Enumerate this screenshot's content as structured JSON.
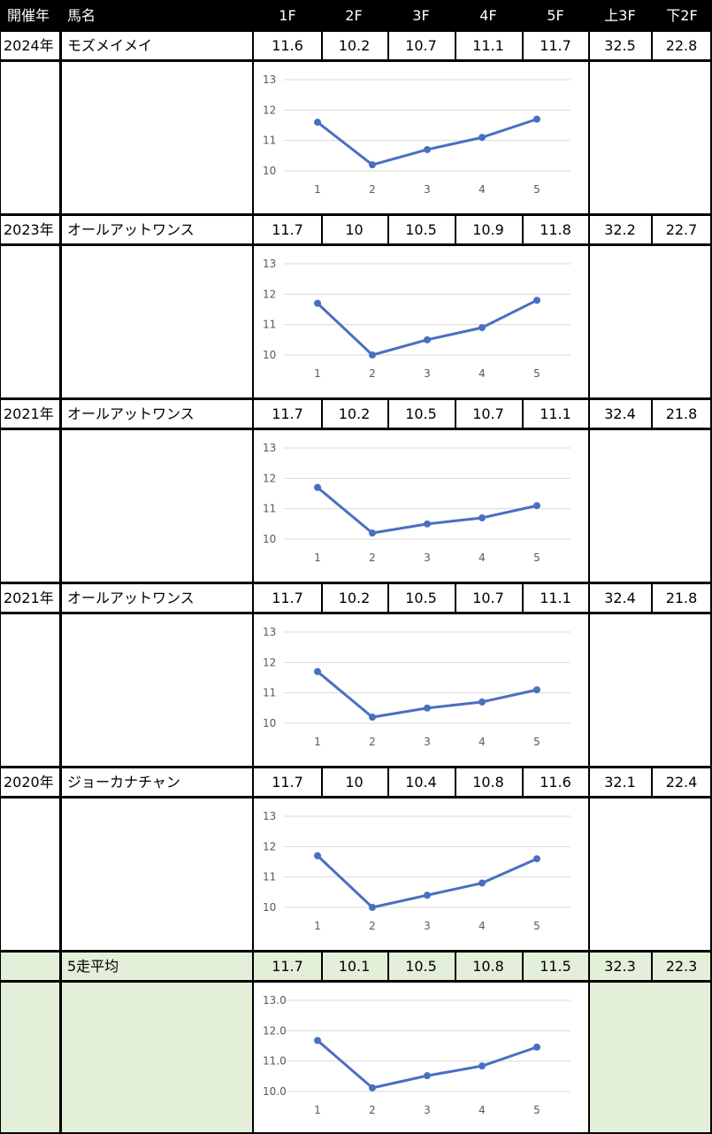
{
  "header": {
    "year": "開催年",
    "horse": "馬名",
    "sections": [
      "1F",
      "2F",
      "3F",
      "4F",
      "5F"
    ],
    "first3f": "上3F",
    "last2f": "下2F"
  },
  "rows": [
    {
      "year": "2024年",
      "horse": "モズメイメイ",
      "values": [
        "11.6",
        "10.2",
        "10.7",
        "11.1",
        "11.7"
      ],
      "first3f": "32.5",
      "last2f": "22.8"
    },
    {
      "year": "2023年",
      "horse": "オールアットワンス",
      "values": [
        "11.7",
        "10",
        "10.5",
        "10.9",
        "11.8"
      ],
      "first3f": "32.2",
      "last2f": "22.7"
    },
    {
      "year": "2021年",
      "horse": "オールアットワンス",
      "values": [
        "11.7",
        "10.2",
        "10.5",
        "10.7",
        "11.1"
      ],
      "first3f": "32.4",
      "last2f": "21.8"
    },
    {
      "year": "2021年",
      "horse": "オールアットワンス",
      "values": [
        "11.7",
        "10.2",
        "10.5",
        "10.7",
        "11.1"
      ],
      "first3f": "32.4",
      "last2f": "21.8"
    },
    {
      "year": "2020年",
      "horse": "ジョーカナチャン",
      "values": [
        "11.7",
        "10",
        "10.4",
        "10.8",
        "11.6"
      ],
      "first3f": "32.1",
      "last2f": "22.4"
    }
  ],
  "average": {
    "year": "",
    "horse": "5走平均",
    "values": [
      "11.7",
      "10.1",
      "10.5",
      "10.8",
      "11.5"
    ],
    "first3f": "32.3",
    "last2f": "22.3"
  },
  "colors": {
    "line": "#4a6fc1",
    "grid": "#d9d9d9",
    "avg_bg": "#e3efd9",
    "header_bg": "#000000"
  },
  "chart_data": [
    {
      "type": "line",
      "x": [
        1,
        2,
        3,
        4,
        5
      ],
      "series": [
        {
          "values": [
            11.6,
            10.2,
            10.7,
            11.1,
            11.7
          ]
        }
      ],
      "ylim": [
        10,
        13
      ],
      "yticks": [
        "10",
        "11",
        "12",
        "13"
      ],
      "xticks": [
        "1",
        "2",
        "3",
        "4",
        "5"
      ],
      "grid": true
    },
    {
      "type": "line",
      "x": [
        1,
        2,
        3,
        4,
        5
      ],
      "series": [
        {
          "values": [
            11.7,
            10.0,
            10.5,
            10.9,
            11.8
          ]
        }
      ],
      "ylim": [
        10,
        13
      ],
      "yticks": [
        "10",
        "11",
        "12",
        "13"
      ],
      "xticks": [
        "1",
        "2",
        "3",
        "4",
        "5"
      ],
      "grid": true
    },
    {
      "type": "line",
      "x": [
        1,
        2,
        3,
        4,
        5
      ],
      "series": [
        {
          "values": [
            11.7,
            10.2,
            10.5,
            10.7,
            11.1
          ]
        }
      ],
      "ylim": [
        10,
        13
      ],
      "yticks": [
        "10",
        "11",
        "12",
        "13"
      ],
      "xticks": [
        "1",
        "2",
        "3",
        "4",
        "5"
      ],
      "grid": true
    },
    {
      "type": "line",
      "x": [
        1,
        2,
        3,
        4,
        5
      ],
      "series": [
        {
          "values": [
            11.7,
            10.2,
            10.5,
            10.7,
            11.1
          ]
        }
      ],
      "ylim": [
        10,
        13
      ],
      "yticks": [
        "10",
        "11",
        "12",
        "13"
      ],
      "xticks": [
        "1",
        "2",
        "3",
        "4",
        "5"
      ],
      "grid": true
    },
    {
      "type": "line",
      "x": [
        1,
        2,
        3,
        4,
        5
      ],
      "series": [
        {
          "values": [
            11.7,
            10.0,
            10.4,
            10.8,
            11.6
          ]
        }
      ],
      "ylim": [
        10,
        13
      ],
      "yticks": [
        "10",
        "11",
        "12",
        "13"
      ],
      "xticks": [
        "1",
        "2",
        "3",
        "4",
        "5"
      ],
      "grid": true
    },
    {
      "type": "line",
      "x": [
        1,
        2,
        3,
        4,
        5
      ],
      "series": [
        {
          "values": [
            11.68,
            10.12,
            10.52,
            10.84,
            11.46
          ]
        }
      ],
      "ylim": [
        10,
        13
      ],
      "yticks": [
        "10.0",
        "11.0",
        "12.0",
        "13.0"
      ],
      "xticks": [
        "1",
        "2",
        "3",
        "4",
        "5"
      ],
      "grid": true
    }
  ]
}
